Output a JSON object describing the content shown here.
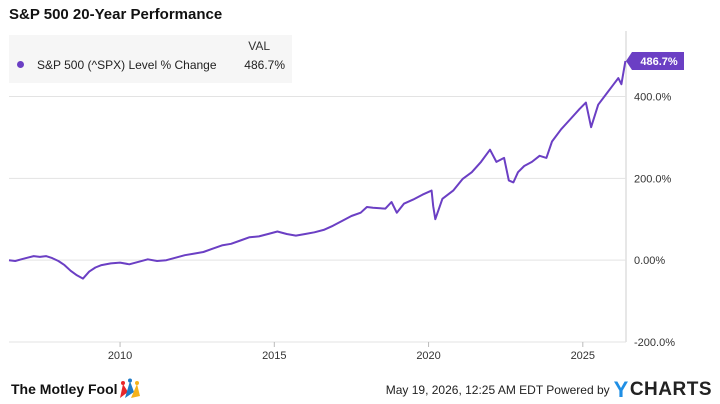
{
  "chart_data": {
    "type": "line",
    "title": "S&P 500 20-Year Performance",
    "legend": {
      "header": "VAL",
      "placement": "top-left"
    },
    "series": [
      {
        "name": "S&P 500 (^SPX) Level % Change",
        "value_label": "486.7%",
        "color": "#6b3fc4",
        "x": [
          2006.4,
          2006.6,
          2006.8,
          2007.0,
          2007.2,
          2007.4,
          2007.6,
          2007.8,
          2008.0,
          2008.2,
          2008.4,
          2008.6,
          2008.8,
          2009.0,
          2009.2,
          2009.4,
          2009.7,
          2010.0,
          2010.3,
          2010.6,
          2010.9,
          2011.2,
          2011.5,
          2011.8,
          2012.1,
          2012.4,
          2012.7,
          2013.0,
          2013.3,
          2013.6,
          2013.9,
          2014.2,
          2014.5,
          2014.8,
          2015.1,
          2015.4,
          2015.7,
          2016.0,
          2016.3,
          2016.6,
          2016.9,
          2017.2,
          2017.5,
          2017.8,
          2018.0,
          2018.2,
          2018.6,
          2018.8,
          2018.97,
          2019.2,
          2019.5,
          2019.8,
          2020.1,
          2020.15,
          2020.22,
          2020.45,
          2020.8,
          2021.1,
          2021.4,
          2021.7,
          2021.99,
          2022.2,
          2022.45,
          2022.6,
          2022.75,
          2022.9,
          2023.1,
          2023.35,
          2023.6,
          2023.82,
          2024.0,
          2024.3,
          2024.6,
          2024.9,
          2025.1,
          2025.27,
          2025.5,
          2025.8,
          2026.0,
          2026.15,
          2026.25,
          2026.38
        ],
        "y": [
          0,
          -2,
          2,
          6,
          10,
          8,
          10,
          5,
          -2,
          -12,
          -26,
          -37,
          -45,
          -28,
          -18,
          -12,
          -8,
          -6,
          -10,
          -4,
          2,
          -2,
          0,
          6,
          12,
          16,
          20,
          28,
          36,
          40,
          48,
          56,
          58,
          64,
          70,
          64,
          60,
          64,
          68,
          74,
          84,
          96,
          108,
          116,
          130,
          128,
          126,
          142,
          116,
          138,
          148,
          160,
          170,
          132,
          100,
          150,
          170,
          198,
          215,
          240,
          270,
          240,
          250,
          195,
          190,
          215,
          230,
          240,
          255,
          250,
          290,
          320,
          345,
          370,
          385,
          325,
          380,
          410,
          430,
          445,
          430,
          486.7
        ]
      }
    ],
    "x_ticks": [
      "2010",
      "2015",
      "2020",
      "2025"
    ],
    "y_ticks": [
      "-200.0%",
      "0.00%",
      "200.0%",
      "400.0%"
    ],
    "ylim": [
      -200,
      560
    ],
    "xlim": [
      2006.4,
      2026.4
    ],
    "grid": "horizontal"
  },
  "footer": {
    "logo_text": "The Motley Fool",
    "timestamp": "May 19, 2026, 12:25 AM EDT Powered by",
    "brand_y": "Y",
    "brand_rest": "CHARTS"
  }
}
